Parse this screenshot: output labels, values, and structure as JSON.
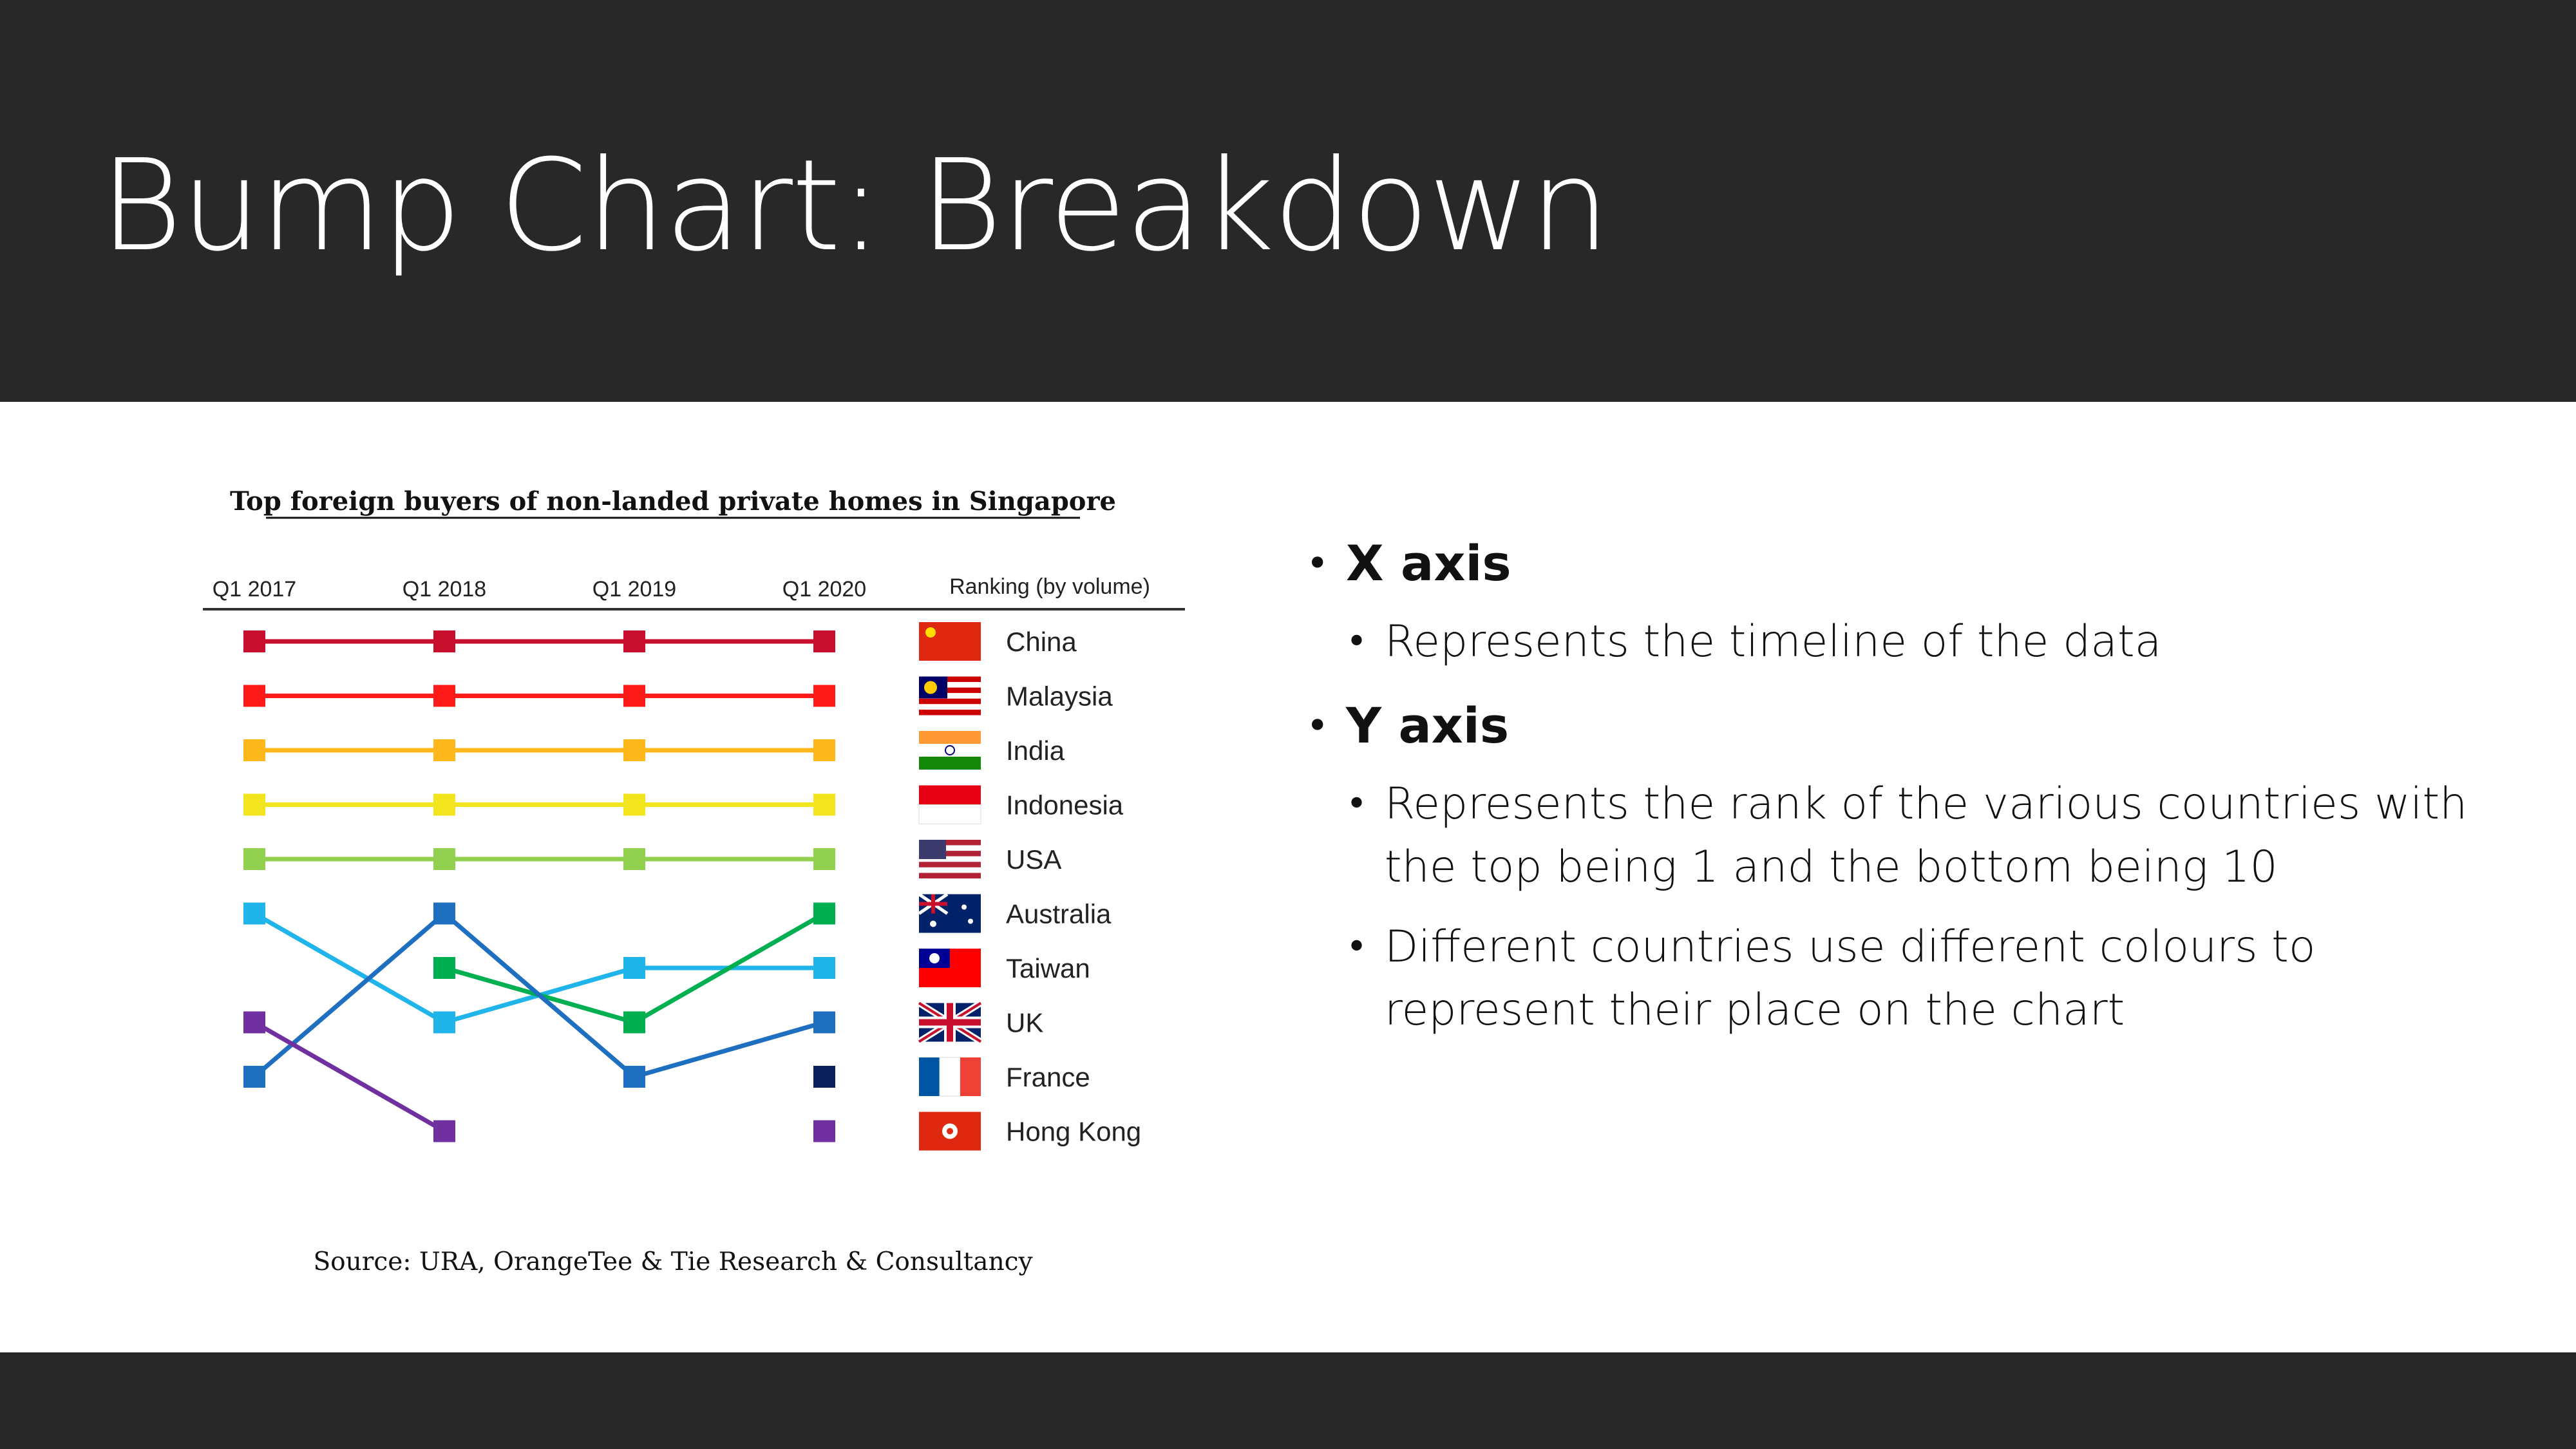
{
  "slide": {
    "title": "Bump Chart: Breakdown"
  },
  "bullets": [
    {
      "level": 1,
      "text": "X axis"
    },
    {
      "level": 2,
      "text": "Represents the timeline of the data"
    },
    {
      "level": 1,
      "text": "Y axis"
    },
    {
      "level": 2,
      "text": "Represents the rank of the various countries with the top being 1 and the bottom being 10"
    },
    {
      "level": 2,
      "text": "Different countries use different colours to represent their place on the chart"
    }
  ],
  "chart_data": {
    "type": "line",
    "title": "Top foreign buyers of non-landed private homes in Singapore",
    "x": [
      "Q1 2017",
      "Q1 2018",
      "Q1 2019",
      "Q1 2020"
    ],
    "y_axis_label": "Ranking (by volume)",
    "ylim": [
      1,
      10
    ],
    "y_inverted": true,
    "grid": false,
    "legend_position": "right",
    "source": "Source: URA, OrangeTee & Tie Research & Consultancy",
    "rank_labels": [
      "China",
      "Malaysia",
      "India",
      "Indonesia",
      "USA",
      "Australia",
      "Taiwan",
      "UK",
      "France",
      "Hong Kong"
    ],
    "series": [
      {
        "name": "China",
        "color": "#c8102e",
        "values": [
          1,
          1,
          1,
          1
        ]
      },
      {
        "name": "Malaysia",
        "color": "#ff1a1a",
        "values": [
          2,
          2,
          2,
          2
        ]
      },
      {
        "name": "India",
        "color": "#ffb81c",
        "values": [
          3,
          3,
          3,
          3
        ]
      },
      {
        "name": "Indonesia",
        "color": "#f2e51d",
        "values": [
          4,
          4,
          4,
          4
        ]
      },
      {
        "name": "USA",
        "color": "#92d050",
        "values": [
          5,
          5,
          5,
          5
        ]
      },
      {
        "name": "Australia",
        "color": "#1fb4ea",
        "values": [
          6,
          8,
          7,
          7
        ]
      },
      {
        "name": "Taiwan",
        "color": "#00b050",
        "values": [
          null,
          7,
          8,
          6
        ]
      },
      {
        "name": "UK",
        "color": "#1f6fc1",
        "values": [
          9,
          6,
          9,
          8
        ]
      },
      {
        "name": "France",
        "color": "#0a1f5c",
        "values": [
          null,
          null,
          null,
          9
        ]
      },
      {
        "name": "Hong Kong",
        "color": "#7030a0",
        "values": [
          8,
          10,
          null,
          10
        ]
      }
    ]
  }
}
